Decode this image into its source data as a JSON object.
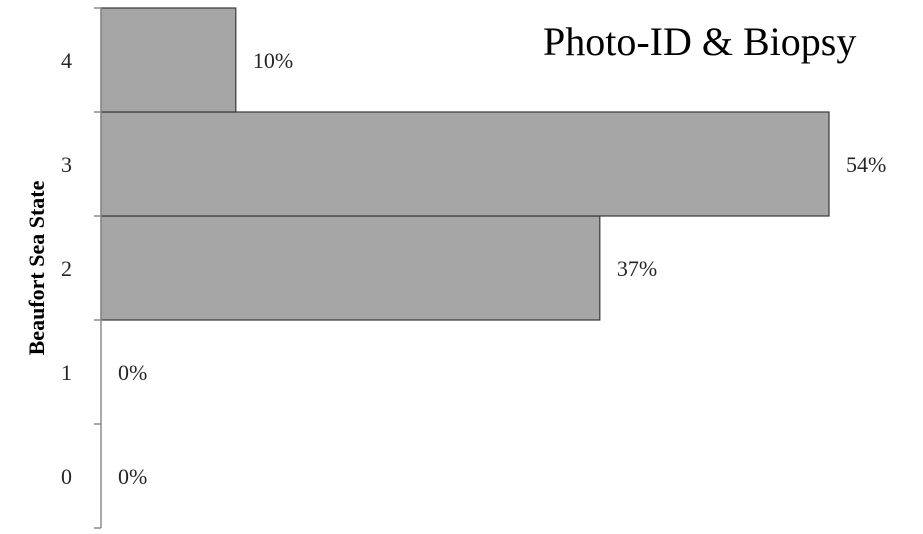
{
  "chart_data": {
    "type": "bar",
    "orientation": "horizontal",
    "title": "Photo-ID & Biopsy",
    "xlabel": "",
    "ylabel": "Beaufort Sea State",
    "categories": [
      "0",
      "1",
      "2",
      "3",
      "4"
    ],
    "values": [
      0,
      0,
      37,
      54,
      10
    ],
    "data_labels": [
      "0%",
      "0%",
      "37%",
      "54%",
      "10%"
    ],
    "xlim": [
      0,
      60
    ],
    "grid": false,
    "legend": "none",
    "colors": {
      "bar_fill": "#a6a6a6",
      "bar_stroke": "#3a3a3a",
      "axis": "#8c8c8c"
    }
  }
}
